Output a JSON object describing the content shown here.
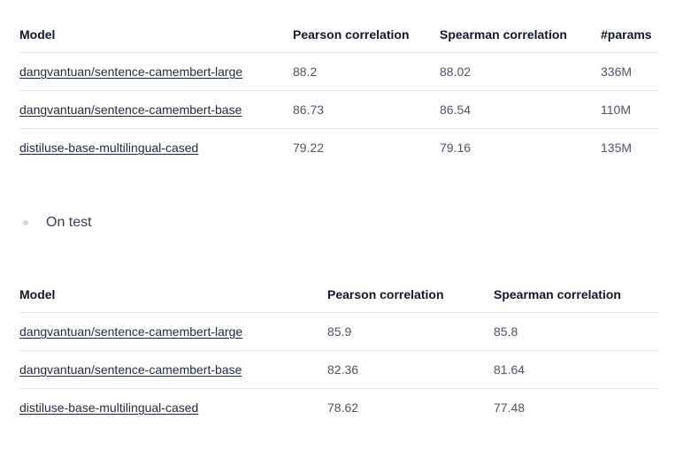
{
  "validation_table": {
    "headers": [
      "Model",
      "Pearson correlation",
      "Spearman correlation",
      "#params"
    ],
    "rows": [
      {
        "model": "dangvantuan/sentence-camembert-large",
        "pearson": "88.2",
        "spearman": "88.02",
        "params": "336M"
      },
      {
        "model": "dangvantuan/sentence-camembert-base",
        "pearson": "86.73",
        "spearman": "86.54",
        "params": "110M"
      },
      {
        "model": "distiluse-base-multilingual-cased",
        "pearson": "79.22",
        "spearman": "79.16",
        "params": "135M"
      }
    ]
  },
  "section_bullet": "On test",
  "test_table": {
    "headers": [
      "Model",
      "Pearson correlation",
      "Spearman correlation"
    ],
    "rows": [
      {
        "model": "dangvantuan/sentence-camembert-large",
        "pearson": "85.9",
        "spearman": "85.8"
      },
      {
        "model": "dangvantuan/sentence-camembert-base",
        "pearson": "82.36",
        "spearman": "81.64"
      },
      {
        "model": "distiluse-base-multilingual-cased",
        "pearson": "78.62",
        "spearman": "77.48"
      }
    ]
  }
}
